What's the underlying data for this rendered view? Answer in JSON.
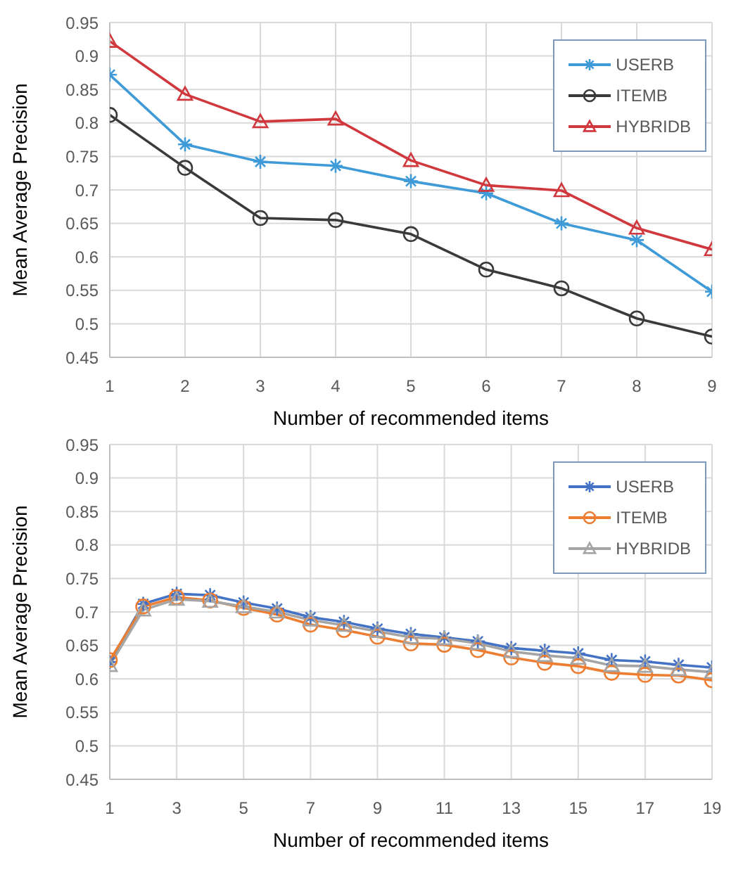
{
  "chart_data": [
    {
      "type": "line",
      "xlabel": "Number of recommended items",
      "ylabel": "Mean Average Precision",
      "x": [
        1,
        2,
        3,
        4,
        5,
        6,
        7,
        8,
        9
      ],
      "xlim": [
        1,
        9
      ],
      "xticks": [
        1,
        2,
        3,
        4,
        5,
        6,
        7,
        8,
        9
      ],
      "ylim": [
        0.45,
        0.95
      ],
      "yticks": [
        0.45,
        0.5,
        0.55,
        0.6,
        0.65,
        0.7,
        0.75,
        0.8,
        0.85,
        0.9,
        0.95
      ],
      "grid": true,
      "legend": "top right",
      "series": [
        {
          "name": "USERB",
          "color": "#3f9ad8",
          "marker": "cross",
          "values": [
            0.872,
            0.768,
            0.742,
            0.736,
            0.713,
            0.695,
            0.65,
            0.625,
            0.548
          ]
        },
        {
          "name": "ITEMB",
          "color": "#3a3a3a",
          "marker": "circle",
          "values": [
            0.812,
            0.733,
            0.658,
            0.655,
            0.634,
            0.581,
            0.553,
            0.508,
            0.481
          ]
        },
        {
          "name": "HYBRIDB",
          "color": "#d0383d",
          "marker": "triangle",
          "values": [
            0.922,
            0.843,
            0.802,
            0.806,
            0.744,
            0.707,
            0.699,
            0.643,
            0.611
          ]
        }
      ]
    },
    {
      "type": "line",
      "xlabel": "Number of recommended items",
      "ylabel": "Mean Average Precision",
      "x": [
        1,
        2,
        3,
        4,
        5,
        6,
        7,
        8,
        9,
        10,
        11,
        12,
        13,
        14,
        15,
        16,
        17,
        18,
        19
      ],
      "xlim": [
        1,
        19
      ],
      "xticks": [
        1,
        3,
        5,
        7,
        9,
        11,
        13,
        15,
        17,
        19
      ],
      "ylim": [
        0.45,
        0.95
      ],
      "yticks": [
        0.45,
        0.5,
        0.55,
        0.6,
        0.65,
        0.7,
        0.75,
        0.8,
        0.85,
        0.9,
        0.95
      ],
      "grid": true,
      "legend": "top right",
      "series": [
        {
          "name": "USERB",
          "color": "#4472c4",
          "marker": "cross",
          "values": [
            0.625,
            0.712,
            0.727,
            0.725,
            0.714,
            0.705,
            0.692,
            0.685,
            0.675,
            0.667,
            0.662,
            0.656,
            0.646,
            0.642,
            0.638,
            0.628,
            0.626,
            0.621,
            0.617
          ]
        },
        {
          "name": "ITEMB",
          "color": "#ed7d31",
          "marker": "circle",
          "values": [
            0.628,
            0.708,
            0.722,
            0.717,
            0.706,
            0.696,
            0.681,
            0.673,
            0.663,
            0.653,
            0.651,
            0.643,
            0.632,
            0.624,
            0.619,
            0.609,
            0.606,
            0.605,
            0.598
          ]
        },
        {
          "name": "HYBRIDB",
          "color": "#a5a5a5",
          "marker": "triangle",
          "values": [
            0.62,
            0.703,
            0.719,
            0.716,
            0.708,
            0.7,
            0.688,
            0.68,
            0.671,
            0.662,
            0.66,
            0.653,
            0.641,
            0.635,
            0.631,
            0.62,
            0.619,
            0.614,
            0.61
          ]
        }
      ]
    }
  ]
}
